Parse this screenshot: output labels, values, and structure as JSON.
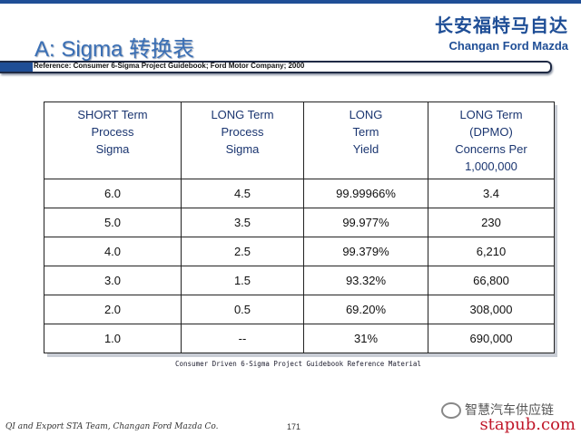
{
  "header": {
    "title": "A: Sigma 转换表",
    "brand_cn": "长安福特马自达",
    "brand_en": "Changan Ford Mazda",
    "reference": "Reference:  Consumer 6-Sigma Project Guidebook; Ford Motor Company; 2000"
  },
  "table": {
    "headers": [
      [
        "SHORT Term",
        "Process",
        "Sigma"
      ],
      [
        "LONG Term",
        "Process",
        "Sigma"
      ],
      [
        "LONG",
        "Term",
        "Yield"
      ],
      [
        "LONG Term",
        "(DPMO)",
        "Concerns Per",
        "1,000,000"
      ]
    ],
    "rows": [
      [
        "6.0",
        "4.5",
        "99.99966%",
        "3.4"
      ],
      [
        "5.0",
        "3.5",
        "99.977%",
        "230"
      ],
      [
        "4.0",
        "2.5",
        "99.379%",
        "6,210"
      ],
      [
        "3.0",
        "1.5",
        "93.32%",
        "66,800"
      ],
      [
        "2.0",
        "0.5",
        "69.20%",
        "308,000"
      ],
      [
        "1.0",
        "--",
        "31%",
        "690,000"
      ]
    ]
  },
  "footnote": "Consumer Driven 6-Sigma Project Guidebook Reference Material",
  "footer": {
    "left": "QI and Export STA Team, Changan Ford Mazda Co.",
    "page": "171",
    "wechat": "智慧汽车供应链",
    "watermark": "stapub.com"
  },
  "colors": {
    "brand_blue": "#1f4e96",
    "title_blue": "#3a6fb5",
    "watermark_red": "#c0182a"
  }
}
